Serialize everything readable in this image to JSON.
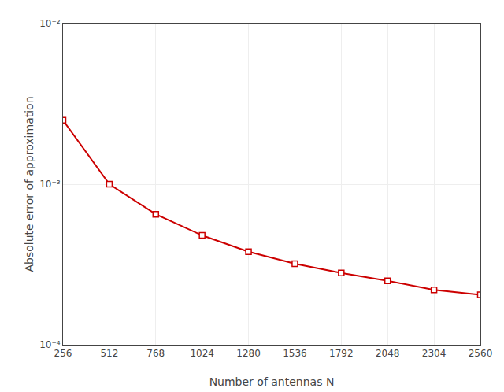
{
  "chart_data": {
    "type": "line",
    "x": [
      256,
      512,
      768,
      1024,
      1280,
      1536,
      1792,
      2048,
      2304,
      2560
    ],
    "values": [
      0.0025,
      0.001,
      0.00065,
      0.00048,
      0.00038,
      0.00032,
      0.00028,
      0.00025,
      0.00022,
      0.000205
    ],
    "color": "#cc0000",
    "marker": "square",
    "line_style": "solid",
    "xlabel": "Number of antennas N",
    "ylabel": "Absolute error of approximation",
    "log": "y",
    "xlim": [
      256,
      2560
    ],
    "ylim": [
      0.0001,
      0.01
    ],
    "xticks": [
      256,
      512,
      768,
      1024,
      1280,
      1536,
      1792,
      2048,
      2304,
      2560
    ],
    "yticks": [
      {
        "value": 0.0001,
        "label": "10⁻⁴"
      },
      {
        "value": 0.001,
        "label": "10⁻³"
      },
      {
        "value": 0.01,
        "label": "10⁻²"
      }
    ],
    "grid": true
  }
}
